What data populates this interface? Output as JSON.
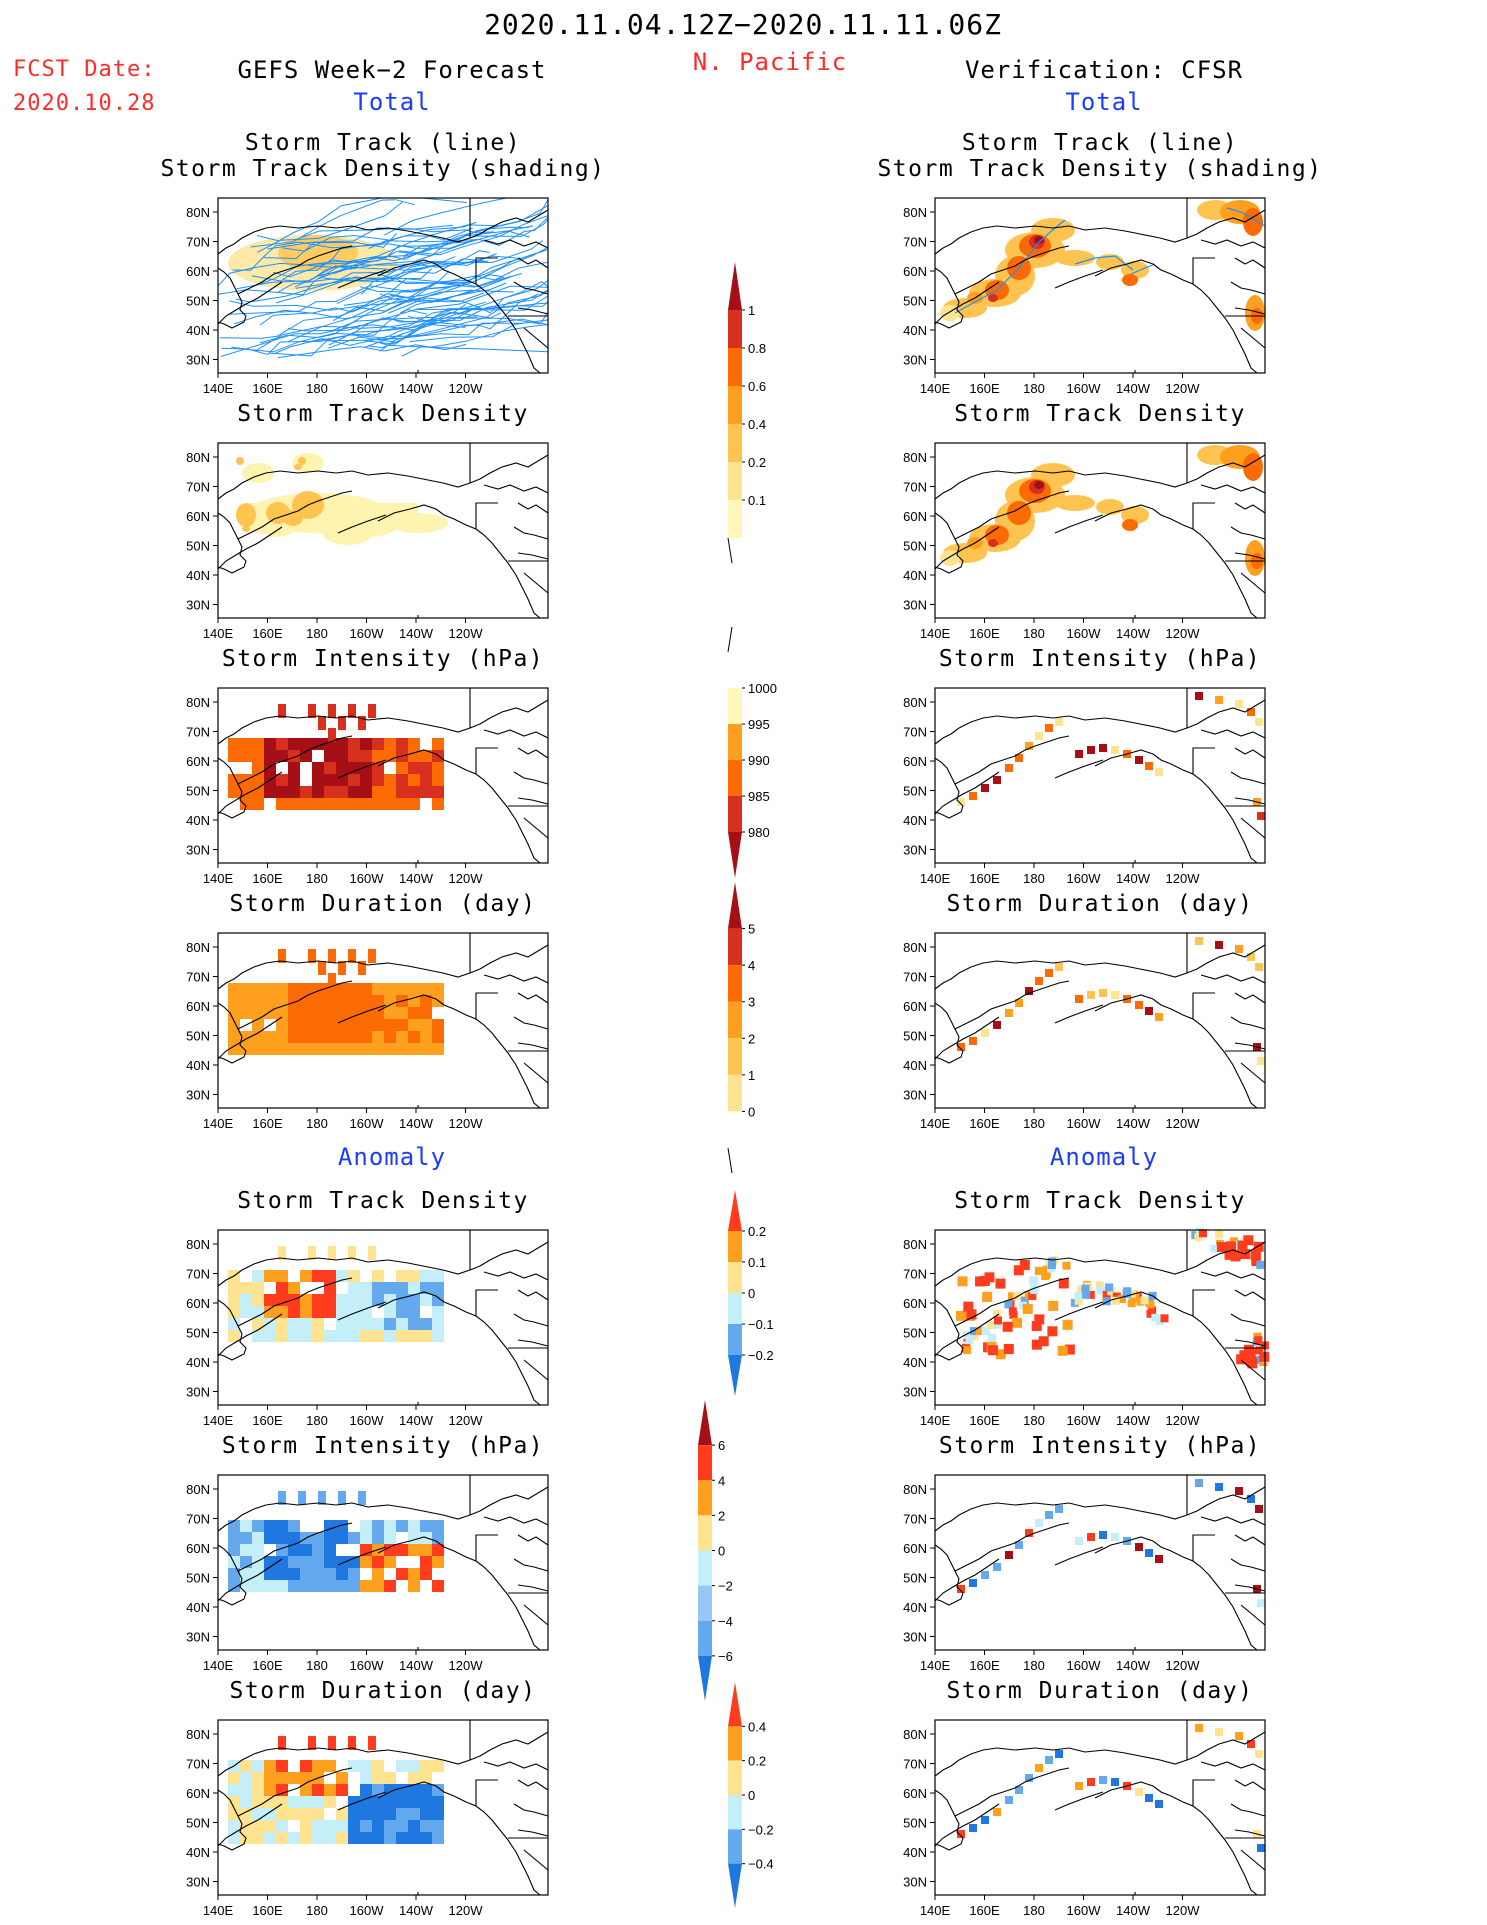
{
  "header": {
    "period": "2020.11.04.12Z−2020.11.11.06Z",
    "region": "N. Pacific",
    "fcst_label": "FCST Date:",
    "fcst_date": "2020.10.28",
    "left_title": "GEFS Week−2 Forecast",
    "right_title": "Verification: CFSR",
    "total_label": "Total",
    "anomaly_label": "Anomaly"
  },
  "axes": {
    "lat_labels": [
      "80N",
      "70N",
      "60N",
      "50N",
      "40N",
      "30N"
    ],
    "lon_labels": [
      "140E",
      "160E",
      "180",
      "160W",
      "140W",
      "120W"
    ]
  },
  "panels": {
    "track": {
      "title1": "Storm Track (line)",
      "title2": "Storm Track Density (shading)"
    },
    "density": {
      "title": "Storm Track Density"
    },
    "intensity": {
      "title": "Storm Intensity (hPa)"
    },
    "duration": {
      "title": "Storm Duration (day)"
    }
  },
  "colorbars": {
    "density_total": {
      "labels": [
        "1",
        "0.8",
        "0.6",
        "0.4",
        "0.2",
        "0.1"
      ],
      "colors": [
        "#a50f15",
        "#d7301f",
        "#fc6a03",
        "#fe9f1d",
        "#fec44f",
        "#fee391",
        "#fff7bc"
      ]
    },
    "intensity_total": {
      "labels": [
        "1000",
        "995",
        "990",
        "985",
        "980"
      ],
      "colors": [
        "#ffffff",
        "#fff7bc",
        "#fe9f1d",
        "#fc6a03",
        "#d7301f",
        "#a50f15"
      ]
    },
    "duration_total": {
      "labels": [
        "5",
        "4",
        "3",
        "2",
        "1",
        "0"
      ],
      "colors": [
        "#a50f15",
        "#d7301f",
        "#fc6a03",
        "#fe9f1d",
        "#fec44f",
        "#fee391",
        "#ffffff"
      ]
    },
    "density_anom": {
      "labels": [
        "0.2",
        "0.1",
        "0",
        "−0.1",
        "−0.2"
      ],
      "colors": [
        "#ff3c1e",
        "#fe9f1d",
        "#fee391",
        "#c4eef8",
        "#64a8ee",
        "#1f78e0"
      ]
    },
    "intensity_anom": {
      "labels": [
        "6",
        "4",
        "2",
        "0",
        "−2",
        "−4",
        "−6"
      ],
      "colors": [
        "#a50f15",
        "#ff3c1e",
        "#fe9f1d",
        "#fee391",
        "#c4eef8",
        "#96c8f6",
        "#64a8ee",
        "#1f78e0"
      ]
    },
    "duration_anom": {
      "labels": [
        "0.4",
        "0.2",
        "0",
        "−0.2",
        "−0.4"
      ],
      "colors": [
        "#ff3c1e",
        "#fe9f1d",
        "#fee391",
        "#c4eef8",
        "#64a8ee",
        "#1f78e0"
      ]
    }
  }
}
